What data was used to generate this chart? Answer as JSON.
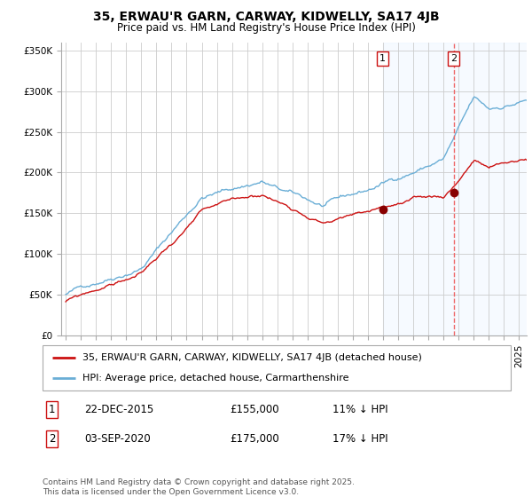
{
  "title": "35, ERWAU'R GARN, CARWAY, KIDWELLY, SA17 4JB",
  "subtitle": "Price paid vs. HM Land Registry's House Price Index (HPI)",
  "legend_line1": "35, ERWAU'R GARN, CARWAY, KIDWELLY, SA17 4JB (detached house)",
  "legend_line2": "HPI: Average price, detached house, Carmarthenshire",
  "annotation1_label": "1",
  "annotation1_date": "22-DEC-2015",
  "annotation1_price": "£155,000",
  "annotation1_hpi": "11% ↓ HPI",
  "annotation2_label": "2",
  "annotation2_date": "03-SEP-2020",
  "annotation2_price": "£175,000",
  "annotation2_hpi": "17% ↓ HPI",
  "sale1_year": 2015.97,
  "sale1_value": 155000,
  "sale2_year": 2020.67,
  "sale2_value": 175000,
  "yticks": [
    0,
    50000,
    100000,
    150000,
    200000,
    250000,
    300000,
    350000
  ],
  "ytick_labels": [
    "£0",
    "£50K",
    "£100K",
    "£150K",
    "£200K",
    "£250K",
    "£300K",
    "£350K"
  ],
  "year_start": 1995,
  "year_end": 2025.5,
  "hpi_color": "#6aaed6",
  "price_color": "#CC1111",
  "sale_marker_color": "#880000",
  "vline_color": "#EE6666",
  "highlight_color": "#DDEEFF",
  "grid_color": "#CCCCCC",
  "background_color": "#FFFFFF",
  "footer": "Contains HM Land Registry data © Crown copyright and database right 2025.\nThis data is licensed under the Open Government Licence v3.0.",
  "title_fontsize": 10,
  "subtitle_fontsize": 8.5,
  "tick_fontsize": 7.5,
  "legend_fontsize": 8,
  "footer_fontsize": 6.5
}
